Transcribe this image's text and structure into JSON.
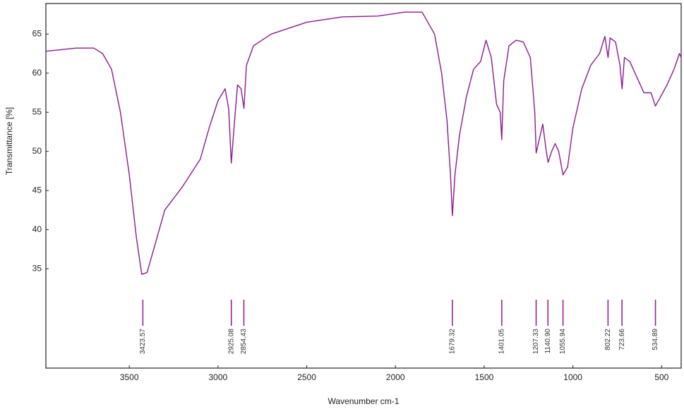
{
  "chart_data": {
    "type": "line",
    "ylabel": "Transmittance [%]",
    "xlabel": "Wavenumber cm-1",
    "color": "#8b1a8b",
    "xlim": [
      3970,
      390
    ],
    "ylim": [
      22.3,
      68.9
    ],
    "xticks": [
      3500,
      3000,
      2500,
      2000,
      1500,
      1000,
      500
    ],
    "yticks": [
      35,
      40,
      45,
      50,
      55,
      60,
      65
    ],
    "x": [
      3970,
      3800,
      3700,
      3650,
      3600,
      3550,
      3500,
      3460,
      3430,
      3400,
      3350,
      3300,
      3200,
      3100,
      3050,
      3000,
      2960,
      2940,
      2925,
      2910,
      2890,
      2870,
      2854,
      2840,
      2800,
      2700,
      2500,
      2300,
      2100,
      1950,
      1850,
      1780,
      1740,
      1710,
      1690,
      1679,
      1665,
      1640,
      1600,
      1560,
      1520,
      1490,
      1460,
      1430,
      1410,
      1401,
      1390,
      1360,
      1320,
      1280,
      1240,
      1215,
      1207,
      1195,
      1170,
      1150,
      1140,
      1120,
      1100,
      1080,
      1056,
      1030,
      1000,
      950,
      900,
      850,
      820,
      802,
      790,
      760,
      735,
      723,
      710,
      680,
      640,
      600,
      560,
      535,
      510,
      470,
      430,
      400,
      390
    ],
    "values": [
      62.8,
      63.2,
      63.2,
      62.5,
      60.5,
      55,
      47,
      39,
      34.3,
      34.5,
      38.5,
      42.5,
      45.5,
      49,
      53,
      56.5,
      58,
      55.5,
      48.5,
      53,
      58.5,
      58,
      55.5,
      61,
      63.5,
      65,
      66.5,
      67.2,
      67.3,
      67.8,
      67.8,
      65,
      60,
      54,
      47,
      41.8,
      47,
      52,
      57,
      60.5,
      61.5,
      64.2,
      62,
      56,
      55,
      51.5,
      59,
      63.5,
      64.2,
      64,
      62,
      55,
      49.8,
      51,
      53.5,
      50,
      48.6,
      50,
      51,
      50,
      47,
      48,
      53,
      58,
      61,
      62.5,
      64.7,
      62,
      64.5,
      64,
      61,
      58,
      62,
      61.5,
      59.5,
      57.5,
      57.5,
      55.8,
      56.8,
      58.5,
      60.5,
      62.5,
      62
    ],
    "peaks": [
      3423.57,
      2925.08,
      2854.43,
      1679.32,
      1401.05,
      1207.33,
      {
        "value": 1140.9,
        "label": "1140.90"
      },
      1055.94,
      802.22,
      723.66,
      534.89
    ]
  }
}
